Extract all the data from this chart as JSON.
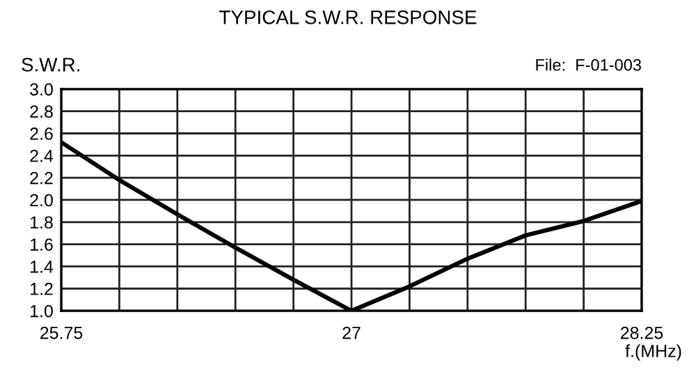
{
  "chart_data": {
    "type": "line",
    "title": "TYPICAL S.W.R. RESPONSE",
    "ylabel": "S.W.R.",
    "xlabel": "f.(MHz)",
    "annotations": [
      "File:  F-01-003"
    ],
    "x": [
      25.75,
      26.0,
      26.25,
      26.5,
      26.75,
      27.0,
      27.25,
      27.5,
      27.75,
      28.0,
      28.25
    ],
    "series": [
      {
        "color": "#000000",
        "values": [
          2.52,
          2.18,
          1.87,
          1.57,
          1.28,
          1.0,
          1.22,
          1.47,
          1.68,
          1.81,
          1.99
        ]
      }
    ],
    "xlim": [
      25.75,
      28.25
    ],
    "xticks": [
      25.75,
      {
        "value": 26.0,
        "label": null
      },
      {
        "value": 26.25,
        "label": null
      },
      {
        "value": 26.5,
        "label": null
      },
      {
        "value": 26.75,
        "label": null
      },
      27,
      {
        "value": 27.25,
        "label": null
      },
      {
        "value": 27.5,
        "label": null
      },
      {
        "value": 27.75,
        "label": null
      },
      {
        "value": 28.0,
        "label": null
      },
      28.25
    ],
    "ylim": [
      1.0,
      3.0
    ],
    "yticks": [
      {
        "value": 1.0,
        "label": "1.0"
      },
      {
        "value": 1.2,
        "label": "1.2"
      },
      {
        "value": 1.4,
        "label": "1.4"
      },
      {
        "value": 1.6,
        "label": "1.6"
      },
      {
        "value": 1.8,
        "label": "1.8"
      },
      {
        "value": 2.0,
        "label": "2.0"
      },
      {
        "value": 2.2,
        "label": "2.2"
      },
      {
        "value": 2.4,
        "label": "2.4"
      },
      {
        "value": 2.6,
        "label": "2.6"
      },
      {
        "value": 2.8,
        "label": "2.8"
      },
      {
        "value": 3.0,
        "label": "3.0"
      }
    ],
    "grid": true,
    "marker": "none",
    "line_style": "solid",
    "legend": false
  }
}
